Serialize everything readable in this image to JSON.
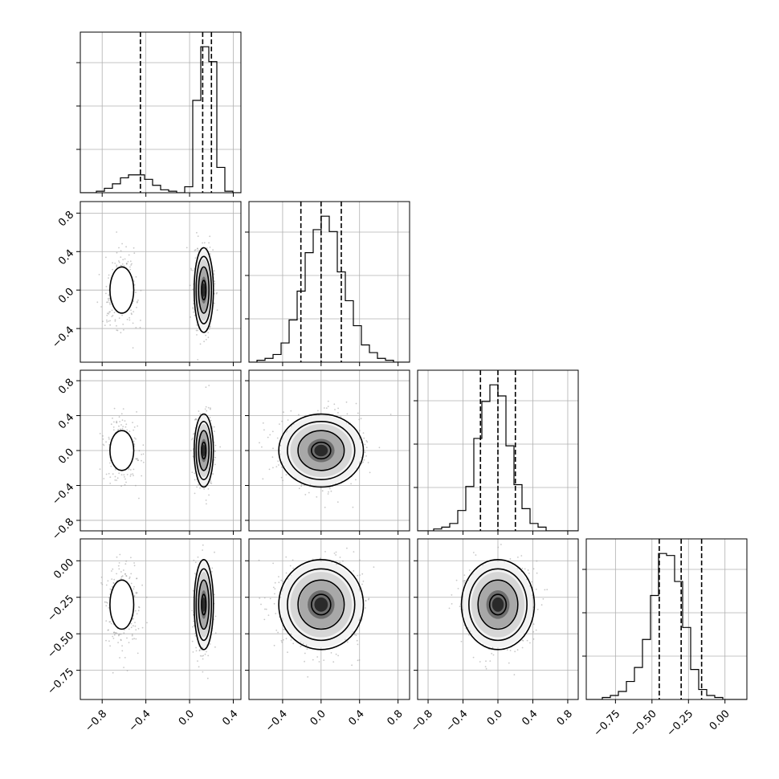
{
  "chart_data": {
    "type": "corner",
    "parameters": [
      {
        "samples": "bimodal",
        "range": [
          -1.0,
          0.47
        ],
        "ticks": [
          -0.8,
          -0.4,
          0.0,
          0.4
        ],
        "tick_labels": [
          "−0.8",
          "−0.4",
          "0.0",
          "0.4"
        ],
        "quantiles": [
          -0.45,
          0.12,
          0.2
        ],
        "modes": [
          {
            "center": -0.62,
            "sd": 0.075,
            "weight": 0.3
          },
          {
            "center": 0.13,
            "sd": 0.04,
            "weight": 0.7
          }
        ]
      },
      {
        "samples": "gaussian",
        "range": [
          -0.75,
          0.92
        ],
        "ticks": [
          -0.4,
          0.0,
          0.4,
          0.8
        ],
        "tick_labels": [
          "−0.4",
          "0.0",
          "0.4",
          "0.8"
        ],
        "quantiles": [
          -0.21,
          0.0,
          0.21
        ],
        "center": 0.0,
        "sd": 0.2
      },
      {
        "samples": "gaussian",
        "range": [
          -0.92,
          0.92
        ],
        "ticks": [
          -0.8,
          -0.4,
          0.0,
          0.4,
          0.8
        ],
        "tick_labels": [
          "−0.8",
          "−0.4",
          "0.0",
          "0.4",
          "0.8"
        ],
        "quantiles": [
          -0.2,
          0.0,
          0.2
        ],
        "center": 0.0,
        "sd": 0.19
      },
      {
        "samples": "gaussian",
        "range": [
          -0.95,
          0.15
        ],
        "ticks": [
          -0.75,
          -0.5,
          -0.25,
          0.0
        ],
        "tick_labels": [
          "−0.75",
          "−0.50",
          "−0.25",
          "0.00"
        ],
        "quantiles": [
          -0.45,
          -0.3,
          -0.16
        ],
        "center": -0.3,
        "sd": 0.14
      }
    ],
    "histogram": {
      "bins": 20,
      "panel_0": [
        0,
        0,
        1,
        3,
        6,
        10,
        12,
        12,
        9,
        5,
        2,
        1,
        0,
        4,
        62,
        98,
        88,
        17,
        1,
        0
      ],
      "panel_1": [
        0,
        1,
        2,
        4,
        10,
        22,
        37,
        57,
        69,
        76,
        68,
        47,
        32,
        19,
        9,
        5,
        2,
        1,
        0,
        0
      ],
      "panel_2": [
        0,
        0,
        1,
        2,
        4,
        11,
        24,
        50,
        70,
        79,
        73,
        46,
        25,
        12,
        4,
        2,
        0,
        0,
        0,
        0
      ],
      "panel_3": [
        0,
        0,
        1,
        2,
        4,
        9,
        16,
        30,
        52,
        73,
        72,
        59,
        36,
        15,
        5,
        2,
        1,
        0,
        0,
        0
      ]
    },
    "legend": "none",
    "grid": true
  }
}
